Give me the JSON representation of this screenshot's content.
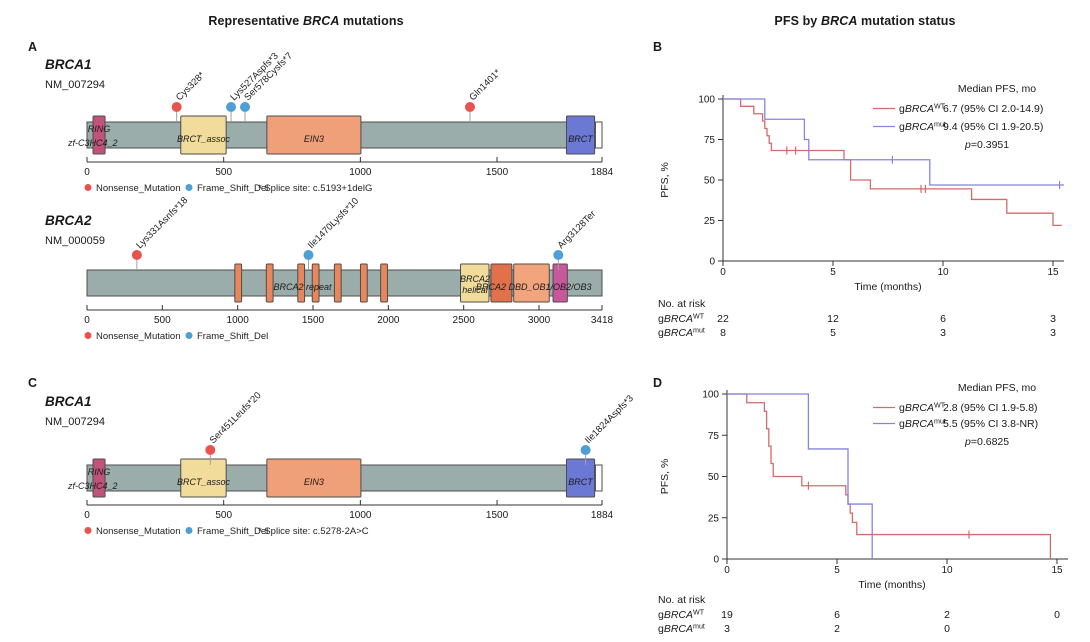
{
  "titles": {
    "left_parts": [
      {
        "t": "Representative "
      },
      {
        "t": "BRCA",
        "i": true
      },
      {
        "t": " mutations"
      }
    ],
    "right_parts": [
      {
        "t": "PFS by "
      },
      {
        "t": "BRCA",
        "i": true
      },
      {
        "t": " mutation status"
      }
    ]
  },
  "panels": {
    "a": "A",
    "b": "B",
    "c": "C",
    "d": "D"
  },
  "colors": {
    "bar": "#9badab",
    "bar_border": "#4d4d4d",
    "Nonsense_Mutation": "#e9534e",
    "Frame_Shift_Del": "#4d9fd6",
    "km_wt": "#d46a6a",
    "km_mut": "#8584de",
    "axis": "#333333"
  },
  "chart_data": [
    {
      "type": "lollipop",
      "panel": "A",
      "gene": "BRCA1",
      "transcript": "NM_007294",
      "length": 1884,
      "ticks": [
        0,
        500,
        1000,
        1500,
        1884
      ],
      "mutations": [
        {
          "label": "Cys328*",
          "pos": 328,
          "mtype": "Nonsense_Mutation"
        },
        {
          "label": "Lys527Aspfs*3",
          "pos": 527,
          "mtype": "Frame_Shift_Del"
        },
        {
          "label": "Ser578Cysfs*7",
          "pos": 578,
          "mtype": "Frame_Shift_Del"
        },
        {
          "label": "Gln1401*",
          "pos": 1401,
          "mtype": "Nonsense_Mutation"
        }
      ],
      "domains": [
        {
          "name": "RING",
          "start": 22,
          "end": 66,
          "color": "#c1537b"
        },
        {
          "name": "BRCT_assoc",
          "label": "BRCT_assoc",
          "start": 343,
          "end": 509,
          "color": "#f2dc9c"
        },
        {
          "name": "EIN3",
          "label": "EIN3",
          "start": 658,
          "end": 1002,
          "color": "#f0a078"
        },
        {
          "name": "BRCT",
          "label": "BRCT",
          "start": 1754,
          "end": 1857,
          "color": "#6b79d4"
        }
      ],
      "unfilled": {
        "start": 1860,
        "end": 1884
      },
      "overlays": [
        {
          "text": "RING",
          "aa": 44,
          "y": 77
        },
        {
          "text": "zf-C3HC4_2",
          "x": 68,
          "y": 91,
          "anchor": "start"
        }
      ],
      "legend": [
        {
          "label": "Nonsense_Mutation",
          "mtype": "Nonsense_Mutation"
        },
        {
          "label": "Frame_Shift_Del",
          "mtype": "Frame_Shift_Del"
        }
      ],
      "footnote": "* Splice site: c.5193+1delG"
    },
    {
      "type": "lollipop",
      "panel": "A",
      "gene": "BRCA2",
      "transcript": "NM_000059",
      "length": 3418,
      "ticks": [
        0,
        500,
        1000,
        1500,
        2000,
        2500,
        3000,
        3418
      ],
      "mutations": [
        {
          "label": "Lys331Asnfs*18",
          "pos": 331,
          "mtype": "Nonsense_Mutation"
        },
        {
          "label": "Ile1470Lysfs*10",
          "pos": 1470,
          "mtype": "Frame_Shift_Del"
        },
        {
          "label": "Arg3128Ter",
          "pos": 3128,
          "mtype": "Frame_Shift_Del"
        }
      ],
      "domains": [
        {
          "name": "BRC-repeat-1",
          "start": 981,
          "end": 1026,
          "color": "#e8875c"
        },
        {
          "name": "BRC-repeat-2",
          "start": 1190,
          "end": 1235,
          "color": "#e8875c"
        },
        {
          "name": "BRC-repeat-3",
          "start": 1399,
          "end": 1444,
          "color": "#e8875c"
        },
        {
          "name": "BRC-repeat-4",
          "start": 1495,
          "end": 1540,
          "color": "#e8875c"
        },
        {
          "name": "BRC-repeat-5",
          "start": 1642,
          "end": 1687,
          "color": "#e8875c"
        },
        {
          "name": "BRC-repeat-6",
          "start": 1815,
          "end": 1860,
          "color": "#e8875c"
        },
        {
          "name": "BRC-repeat-7",
          "start": 1949,
          "end": 1994,
          "color": "#e8875c"
        },
        {
          "name": "BRCA2-helical",
          "start": 2479,
          "end": 2668,
          "color": "#f2dc9c"
        },
        {
          "name": "BRCA2-DBD-1",
          "start": 2681,
          "end": 2820,
          "color": "#e0714b"
        },
        {
          "name": "BRCA2-DBD-2",
          "start": 2832,
          "end": 3068,
          "color": "#f2a57c"
        },
        {
          "name": "BRCA2-OB",
          "start": 3093,
          "end": 3188,
          "color": "#c9589a"
        }
      ],
      "overlays": [
        {
          "text": "BRCA2 repeat",
          "aa": 1430,
          "y": 87
        },
        {
          "text": "BRCA2",
          "aa": 2575,
          "y": 79
        },
        {
          "text": "helical",
          "aa": 2575,
          "y": 90
        },
        {
          "text": "BRCA2 DBD_OB1/OB2/OB3",
          "aa": 2965,
          "y": 87
        }
      ],
      "legend": [
        {
          "label": "Nonsense_Mutation",
          "mtype": "Nonsense_Mutation"
        },
        {
          "label": "Frame_Shift_Del",
          "mtype": "Frame_Shift_Del"
        }
      ],
      "footnote": ""
    },
    {
      "type": "lollipop",
      "panel": "C",
      "gene": "BRCA1",
      "transcript": "NM_007294",
      "length": 1884,
      "ticks": [
        0,
        500,
        1000,
        1500,
        1884
      ],
      "mutations": [
        {
          "label": "Ser451Leufs*20",
          "pos": 451,
          "mtype": "Nonsense_Mutation"
        },
        {
          "label": "Ile1824Aspfs*3",
          "pos": 1824,
          "mtype": "Frame_Shift_Del"
        }
      ],
      "domains": [
        {
          "name": "RING",
          "start": 22,
          "end": 66,
          "color": "#c1537b"
        },
        {
          "name": "BRCT_assoc",
          "label": "BRCT_assoc",
          "start": 343,
          "end": 509,
          "color": "#f2dc9c"
        },
        {
          "name": "EIN3",
          "label": "EIN3",
          "start": 658,
          "end": 1002,
          "color": "#f0a078"
        },
        {
          "name": "BRCT",
          "label": "BRCT",
          "start": 1754,
          "end": 1857,
          "color": "#6b79d4"
        }
      ],
      "unfilled": {
        "start": 1860,
        "end": 1884
      },
      "overlays": [
        {
          "text": "RING",
          "aa": 44,
          "y": 77
        },
        {
          "text": "zf-C3HC4_2",
          "x": 68,
          "y": 91,
          "anchor": "start"
        }
      ],
      "legend": [
        {
          "label": "Nonsense_Mutation",
          "mtype": "Nonsense_Mutation"
        },
        {
          "label": "Frame_Shift_Del",
          "mtype": "Frame_Shift_Del"
        }
      ],
      "footnote": "* Splice site: c.5278-2A>C"
    },
    {
      "type": "km",
      "panel": "B",
      "ylabel": "PFS, %",
      "xlabel": "Time (months)",
      "yticks": [
        0,
        25,
        50,
        75,
        100
      ],
      "xticks": [
        0,
        5,
        10,
        15
      ],
      "legend_header": "Median PFS, mo",
      "pvalue_parts": [
        {
          "t": "p",
          "i": true
        },
        {
          "t": "=0.3951"
        }
      ],
      "series": [
        {
          "key": "wt",
          "name_parts": [
            {
              "t": "g"
            },
            {
              "t": "BRCA",
              "i": true
            },
            {
              "t": "WT",
              "sup": true
            }
          ],
          "color": "#d46a6a",
          "median": "6.7 (95% CI 2.0-14.9)",
          "steps": [
            [
              0,
              100
            ],
            [
              0.8,
              95.5
            ],
            [
              1.4,
              90.9
            ],
            [
              1.8,
              86.4
            ],
            [
              1.9,
              81.8
            ],
            [
              2.0,
              77.3
            ],
            [
              2.1,
              72.7
            ],
            [
              2.2,
              68.2
            ],
            [
              5.5,
              62.5
            ],
            [
              5.8,
              50
            ],
            [
              6.7,
              44.5
            ],
            [
              11.3,
              38
            ],
            [
              12.9,
              29.5
            ],
            [
              15.0,
              22
            ]
          ],
          "end": 15.4,
          "censors": [
            [
              2.9,
              68.2
            ],
            [
              3.3,
              68.2
            ],
            [
              9.0,
              44.5
            ],
            [
              9.2,
              44.5
            ]
          ]
        },
        {
          "key": "mut",
          "name_parts": [
            {
              "t": "g"
            },
            {
              "t": "BRCA",
              "i": true
            },
            {
              "t": "mut",
              "sup": true
            }
          ],
          "color": "#8584de",
          "median": "9.4 (95% CI 1.9-20.5)",
          "steps": [
            [
              0,
              100
            ],
            [
              1.9,
              87.5
            ],
            [
              3.7,
              75
            ],
            [
              3.9,
              62.5
            ],
            [
              9.4,
              46.9
            ]
          ],
          "end": 15.5,
          "censors": [
            [
              7.7,
              62.5
            ],
            [
              15.3,
              46.9
            ]
          ]
        }
      ],
      "risk_table": {
        "title": "No. at risk",
        "times": [
          0,
          5,
          10,
          15
        ],
        "rows": [
          {
            "name_parts": [
              {
                "t": "g"
              },
              {
                "t": "BRCA",
                "i": true
              },
              {
                "t": "WT",
                "sup": true
              }
            ],
            "counts": [
              "22",
              "12",
              "6",
              "3"
            ]
          },
          {
            "name_parts": [
              {
                "t": "g"
              },
              {
                "t": "BRCA",
                "i": true
              },
              {
                "t": "mut",
                "sup": true
              }
            ],
            "counts": [
              "8",
              "5",
              "3",
              "3"
            ]
          }
        ]
      }
    },
    {
      "type": "km",
      "panel": "D",
      "ylabel": "PFS, %",
      "xlabel": "Time (months)",
      "yticks": [
        0,
        25,
        50,
        75,
        100
      ],
      "xticks": [
        0,
        5,
        10,
        15
      ],
      "legend_header": "Median PFS, mo",
      "pvalue_parts": [
        {
          "t": "p",
          "i": true
        },
        {
          "t": "=0.6825"
        }
      ],
      "series": [
        {
          "key": "wt",
          "name_parts": [
            {
              "t": "g"
            },
            {
              "t": "BRCA",
              "i": true
            },
            {
              "t": "WT",
              "sup": true
            }
          ],
          "color": "#d46a6a",
          "median": "2.8 (95% CI 1.9-5.8)",
          "steps": [
            [
              0,
              100
            ],
            [
              0.9,
              94.7
            ],
            [
              1.7,
              89.5
            ],
            [
              1.8,
              78.9
            ],
            [
              1.9,
              68.4
            ],
            [
              2.0,
              57.9
            ],
            [
              2.1,
              50
            ],
            [
              3.4,
              44.4
            ],
            [
              5.4,
              38.9
            ],
            [
              5.5,
              33.3
            ],
            [
              5.6,
              27.8
            ],
            [
              5.7,
              22.2
            ],
            [
              5.9,
              14.8
            ],
            [
              14.7,
              0
            ]
          ],
          "end": 14.7,
          "censors": [
            [
              3.7,
              44.4
            ],
            [
              11.0,
              14.8
            ]
          ]
        },
        {
          "key": "mut",
          "name_parts": [
            {
              "t": "g"
            },
            {
              "t": "BRCA",
              "i": true
            },
            {
              "t": "mut",
              "sup": true
            }
          ],
          "color": "#8584de",
          "median": "5.5 (95% CI 3.8-NR)",
          "steps": [
            [
              0,
              100
            ],
            [
              3.7,
              66.7
            ],
            [
              5.5,
              33.3
            ],
            [
              6.6,
              0
            ]
          ],
          "end": 6.6,
          "censors": []
        }
      ],
      "risk_table": {
        "title": "No. at risk",
        "times": [
          0,
          5,
          10,
          15
        ],
        "rows": [
          {
            "name_parts": [
              {
                "t": "g"
              },
              {
                "t": "BRCA",
                "i": true
              },
              {
                "t": "WT",
                "sup": true
              }
            ],
            "counts": [
              "19",
              "6",
              "2",
              "0"
            ]
          },
          {
            "name_parts": [
              {
                "t": "g"
              },
              {
                "t": "BRCA",
                "i": true
              },
              {
                "t": "mut",
                "sup": true
              }
            ],
            "counts": [
              "3",
              "2",
              "0",
              ""
            ]
          }
        ]
      }
    }
  ]
}
